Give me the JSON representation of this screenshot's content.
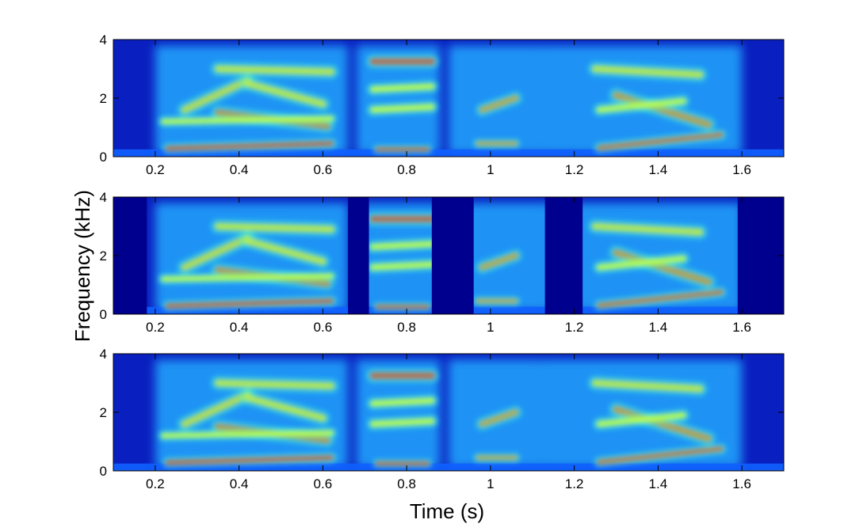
{
  "chart_data": [
    {
      "type": "heatmap",
      "panel": "top",
      "colormap": "jet",
      "x_range": [
        0.1,
        1.7
      ],
      "y_range": [
        0,
        4
      ],
      "x_ticks": [
        "0.2",
        "0.4",
        "0.6",
        "0.8",
        "1",
        "1.2",
        "1.4",
        "1.6"
      ],
      "x_tick_values": [
        0.2,
        0.4,
        0.6,
        0.8,
        1.0,
        1.2,
        1.4,
        1.6
      ],
      "y_ticks": [
        "0",
        "2",
        "4"
      ],
      "y_tick_values": [
        0,
        2,
        4
      ],
      "silence_intervals": []
    },
    {
      "type": "heatmap",
      "panel": "middle",
      "colormap": "jet",
      "x_range": [
        0.1,
        1.7
      ],
      "y_range": [
        0,
        4
      ],
      "x_ticks": [
        "0.2",
        "0.4",
        "0.6",
        "0.8",
        "1",
        "1.2",
        "1.4",
        "1.6"
      ],
      "x_tick_values": [
        0.2,
        0.4,
        0.6,
        0.8,
        1.0,
        1.2,
        1.4,
        1.6
      ],
      "y_ticks": [
        "0",
        "2",
        "4"
      ],
      "y_tick_values": [
        0,
        2,
        4
      ],
      "silence_intervals": [
        [
          0.1,
          0.18
        ],
        [
          0.66,
          0.71
        ],
        [
          0.86,
          0.96
        ],
        [
          1.13,
          1.22
        ],
        [
          1.59,
          1.7
        ]
      ]
    },
    {
      "type": "heatmap",
      "panel": "bottom",
      "colormap": "jet",
      "x_range": [
        0.1,
        1.7
      ],
      "y_range": [
        0,
        4
      ],
      "x_ticks": [
        "0.2",
        "0.4",
        "0.6",
        "0.8",
        "1",
        "1.2",
        "1.4",
        "1.6"
      ],
      "x_tick_values": [
        0.2,
        0.4,
        0.6,
        0.8,
        1.0,
        1.2,
        1.4,
        1.6
      ],
      "y_ticks": [
        "0",
        "2",
        "4"
      ],
      "y_tick_values": [
        0,
        2,
        4
      ],
      "silence_intervals": []
    }
  ],
  "labels": {
    "ylabel": "Frequency (kHz)",
    "xlabel": "Time (s)"
  }
}
